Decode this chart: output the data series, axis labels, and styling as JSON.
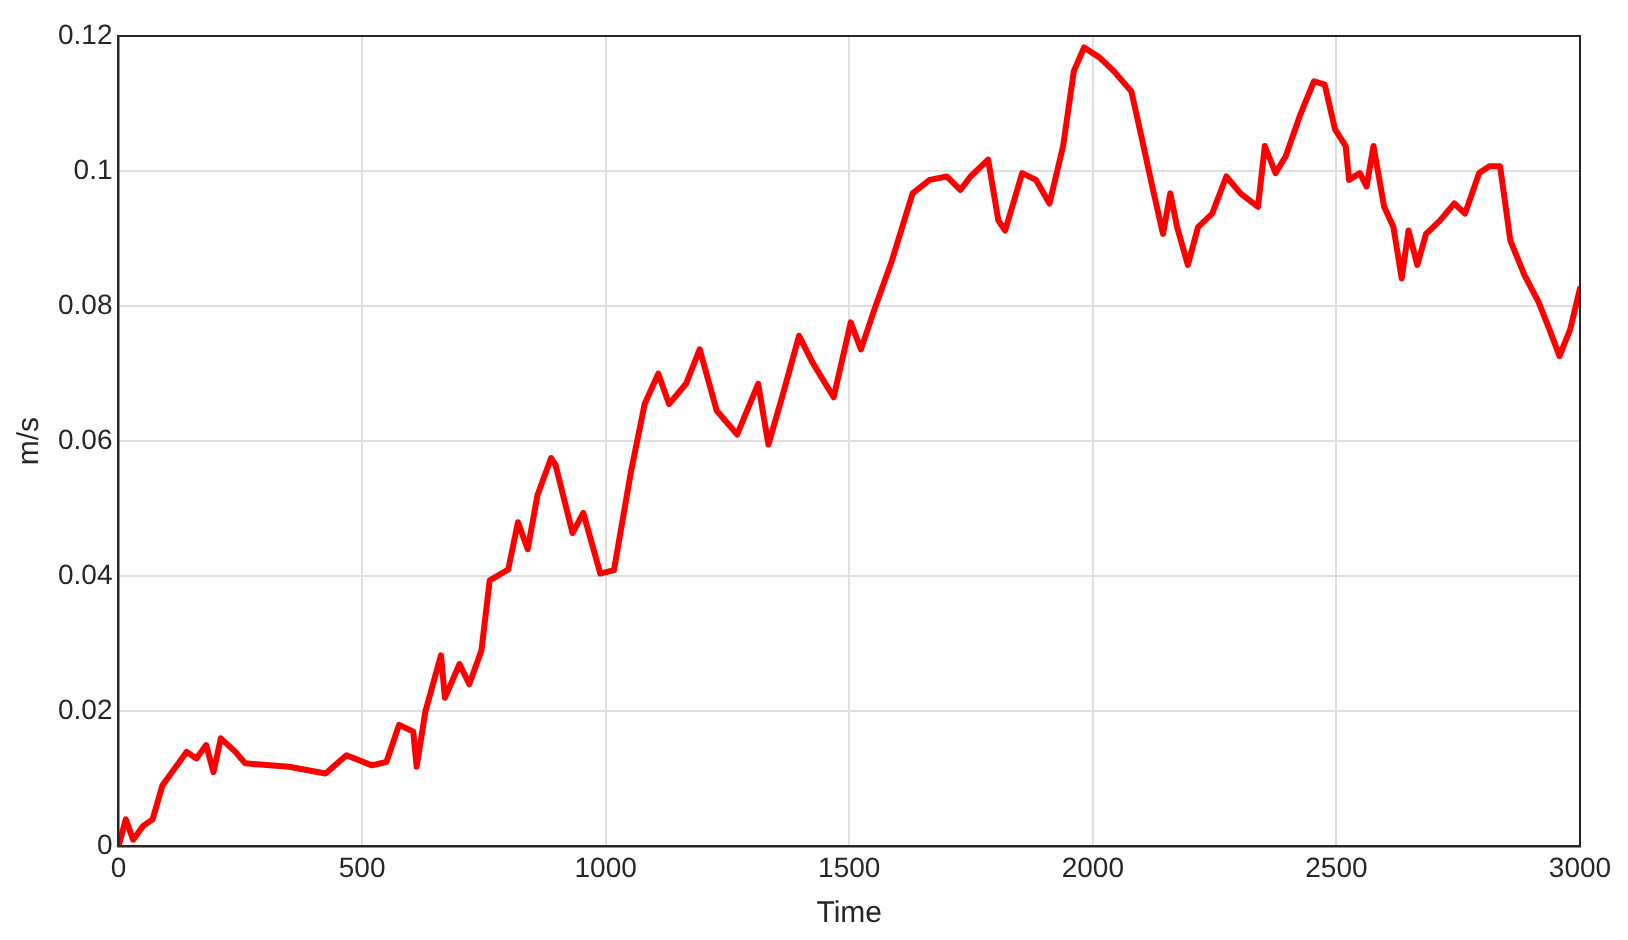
{
  "chart_data": {
    "type": "line",
    "xlabel": "Time",
    "ylabel": "m/s",
    "xlim": [
      0,
      3000
    ],
    "xticks": [
      0,
      500,
      1000,
      1500,
      2000,
      2500,
      3000
    ],
    "ylim": [
      0,
      0.12
    ],
    "yticks": [
      0,
      0.02,
      0.04,
      0.06,
      0.08,
      0.1,
      0.12
    ],
    "grid": true,
    "marker": "none",
    "line_style": "solid",
    "series": [
      {
        "color": "#ff0000",
        "x": [
          0,
          15,
          30,
          50,
          70,
          90,
          110,
          140,
          160,
          180,
          195,
          210,
          240,
          260,
          350,
          425,
          468,
          520,
          550,
          576,
          605,
          612,
          630,
          662,
          670,
          700,
          720,
          745,
          762,
          800,
          820,
          840,
          860,
          888,
          897,
          932,
          954,
          989,
          1017,
          1052,
          1080,
          1108,
          1130,
          1165,
          1193,
          1228,
          1270,
          1313,
          1334,
          1362,
          1397,
          1425,
          1468,
          1503,
          1524,
          1552,
          1587,
          1630,
          1665,
          1700,
          1728,
          1749,
          1785,
          1806,
          1820,
          1855,
          1883,
          1911,
          1939,
          1961,
          1982,
          2014,
          2043,
          2079,
          2101,
          2122,
          2144,
          2159,
          2173,
          2195,
          2216,
          2245,
          2274,
          2303,
          2339,
          2353,
          2375,
          2396,
          2425,
          2454,
          2476,
          2497,
          2519,
          2526,
          2548,
          2562,
          2576,
          2598,
          2617,
          2634,
          2648,
          2666,
          2684,
          2713,
          2742,
          2764,
          2793,
          2814,
          2836,
          2857,
          2886,
          2915,
          2937,
          2958,
          2980,
          3000
        ],
        "values": [
          0,
          0.004,
          0.001,
          0.003,
          0.004,
          0.009,
          0.011,
          0.014,
          0.013,
          0.015,
          0.011,
          0.016,
          0.014,
          0.0123,
          0.0118,
          0.0108,
          0.0135,
          0.012,
          0.0125,
          0.018,
          0.017,
          0.0118,
          0.02,
          0.0283,
          0.022,
          0.027,
          0.024,
          0.029,
          0.0394,
          0.041,
          0.048,
          0.044,
          0.052,
          0.0575,
          0.0565,
          0.0464,
          0.0494,
          0.0404,
          0.0409,
          0.0555,
          0.0655,
          0.07,
          0.0655,
          0.0685,
          0.0736,
          0.0645,
          0.061,
          0.0685,
          0.0595,
          0.0665,
          0.0756,
          0.0716,
          0.0665,
          0.0776,
          0.0736,
          0.0796,
          0.0866,
          0.0967,
          0.0987,
          0.0992,
          0.0972,
          0.0992,
          0.1017,
          0.0927,
          0.0912,
          0.0997,
          0.0987,
          0.0952,
          0.1037,
          0.1148,
          0.1183,
          0.1168,
          0.1148,
          0.1118,
          0.1047,
          0.0977,
          0.0907,
          0.0967,
          0.0917,
          0.0861,
          0.0917,
          0.0937,
          0.0992,
          0.0967,
          0.0947,
          0.1037,
          0.0997,
          0.1022,
          0.1082,
          0.1133,
          0.1128,
          0.1062,
          0.1037,
          0.0987,
          0.0997,
          0.0977,
          0.1037,
          0.0947,
          0.0917,
          0.0841,
          0.0912,
          0.0861,
          0.0907,
          0.0927,
          0.0952,
          0.0937,
          0.0997,
          0.1007,
          0.1007,
          0.0897,
          0.0846,
          0.0806,
          0.0766,
          0.0726,
          0.0766,
          0.0826
        ]
      }
    ]
  }
}
